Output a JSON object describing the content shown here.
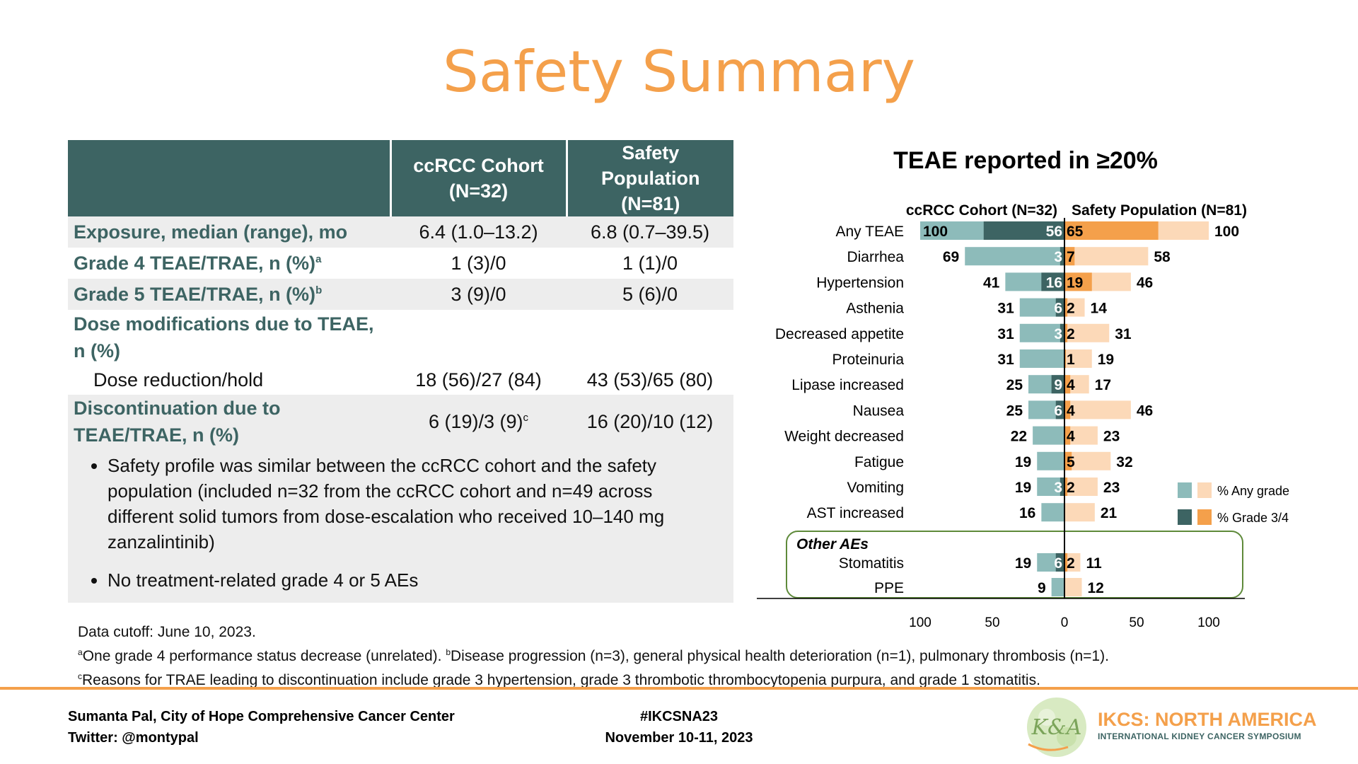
{
  "title": "Safety Summary",
  "table": {
    "headers": [
      "",
      "ccRCC Cohort\n(N=32)",
      "Safety Population\n(N=81)"
    ],
    "rows": [
      {
        "label": "Exposure, median (range), mo",
        "c1": "6.4 (1.0–13.2)",
        "c2": "6.8 (0.7–39.5)"
      },
      {
        "label": "Grade 4 TEAE/TRAE, n (%)",
        "sup": "a",
        "c1": "1 (3)/0",
        "c2": "1 (1)/0"
      },
      {
        "label": "Grade 5 TEAE/TRAE, n (%)",
        "sup": "b",
        "c1": "3 (9)/0",
        "c2": "5 (6)/0"
      },
      {
        "label": "Dose modifications due to TEAE, n (%)",
        "c1": "",
        "c2": ""
      },
      {
        "label": "Dose reduction/hold",
        "c1": "18 (56)/27 (84)",
        "c2": "43 (53)/65 (80)"
      },
      {
        "label": "Discontinuation due to TEAE/TRAE, n (%)",
        "c1": "6 (19)/3 (9)",
        "c1_sup": "c",
        "c2": "16 (20)/10 (12)"
      }
    ]
  },
  "bullets": [
    "Safety profile was similar between the ccRCC cohort and the safety population (included n=32 from the ccRCC cohort and n=49 across different solid tumors from dose-escalation who received 10–140 mg zanzalintinib)",
    "No treatment-related grade 4 or 5 AEs"
  ],
  "chart_data": {
    "type": "bar",
    "title": "TEAE reported in ≥20%",
    "left_series_title": "ccRCC Cohort (N=32)",
    "right_series_title": "Safety Population (N=81)",
    "categories": [
      "Any TEAE",
      "Diarrhea",
      "Hypertension",
      "Asthenia",
      "Decreased appetite",
      "Proteinuria",
      "Lipase increased",
      "Nausea",
      "Weight decreased",
      "Fatigue",
      "Vomiting",
      "AST increased"
    ],
    "ccrcc_any": [
      100,
      69,
      41,
      31,
      31,
      31,
      25,
      25,
      22,
      19,
      19,
      16
    ],
    "ccrcc_g34": [
      56,
      3,
      16,
      6,
      3,
      0,
      9,
      6,
      0,
      0,
      3,
      0
    ],
    "safety_any": [
      100,
      58,
      46,
      14,
      31,
      19,
      17,
      46,
      23,
      32,
      23,
      21
    ],
    "safety_g34": [
      65,
      7,
      19,
      2,
      2,
      1,
      4,
      4,
      4,
      5,
      2,
      0
    ],
    "other_label": "Other AEs",
    "other_categories": [
      "Stomatitis",
      "PPE"
    ],
    "other_ccrcc_any": [
      19,
      9
    ],
    "other_ccrcc_g34": [
      6,
      0
    ],
    "other_safety_any": [
      11,
      12
    ],
    "other_safety_g34": [
      2,
      0
    ],
    "x_ticks": [
      "100",
      "50",
      "0",
      "50",
      "100"
    ],
    "xlim": [
      -100,
      100
    ],
    "legend": [
      "% Any grade",
      "% Grade 3/4"
    ],
    "legend_position": "right",
    "colors": {
      "ccrcc_any": "#8DBBBA",
      "ccrcc_g34": "#3D6463",
      "safety_any": "#FCD9B8",
      "safety_g34": "#F4A04B"
    }
  },
  "footnotes": {
    "cutoff": "Data cutoff: June 10, 2023.",
    "a": "One grade 4 performance status decrease (unrelated).",
    "b": "Disease progression (n=3), general physical health deterioration (n=1), pulmonary thrombosis (n=1).",
    "c": "Reasons for TRAE leading to discontinuation include grade 3 hypertension, grade 3 thrombotic thrombocytopenia purpura, and grade 1 stomatitis."
  },
  "footer": {
    "author": "Sumanta Pal, City of Hope Comprehensive Cancer Center",
    "twitter": "Twitter: @montypal",
    "hashtag": "#IKCSNA23",
    "date": "November 10-11, 2023",
    "logo_mark": "KCA",
    "logo_title": "IKCS: NORTH AMERICA",
    "logo_subtitle": "INTERNATIONAL KIDNEY CANCER SYMPOSIUM"
  }
}
